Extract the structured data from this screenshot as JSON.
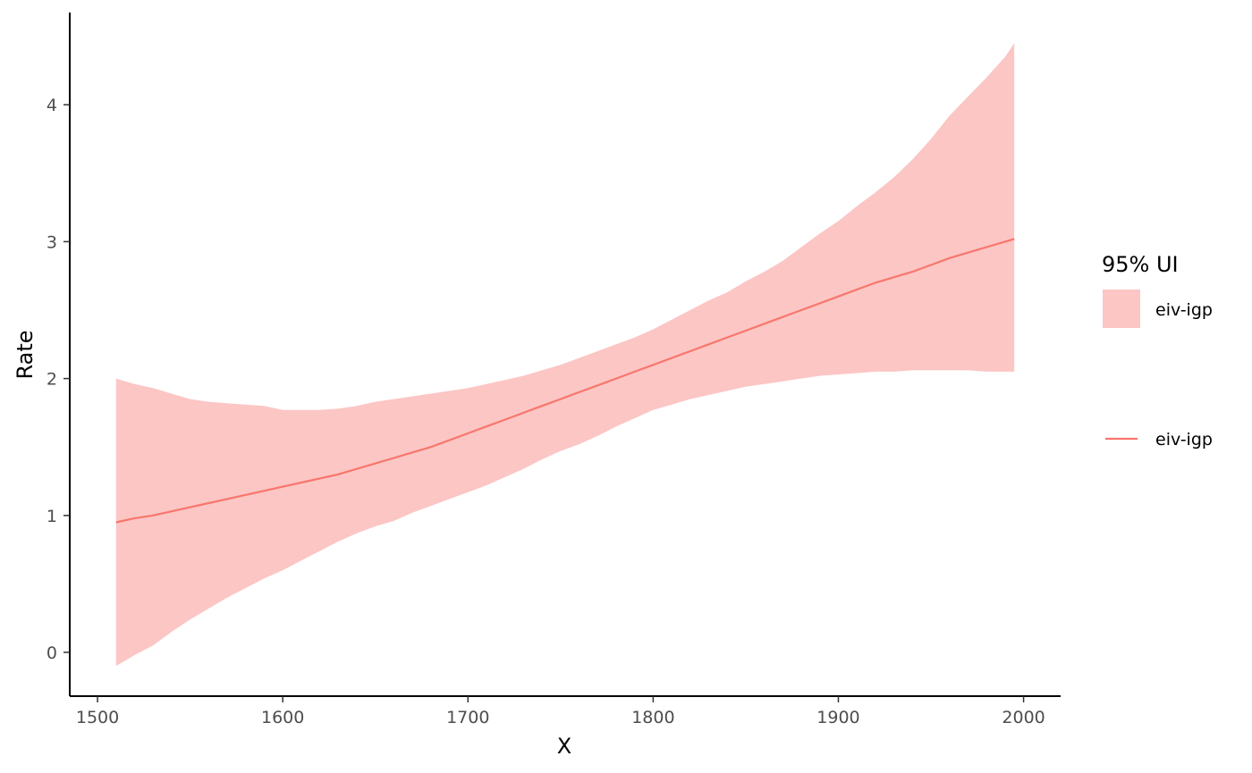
{
  "chart_data": {
    "type": "line",
    "title": "",
    "xlabel": "X",
    "ylabel": "Rate",
    "xlim": [
      1485,
      2020
    ],
    "ylim": [
      -0.32,
      4.7
    ],
    "x_ticks": [
      1500,
      1600,
      1700,
      1800,
      1900,
      2000
    ],
    "x_tick_labels": [
      "1500",
      "1600",
      "1700",
      "1800",
      "1900",
      "2000"
    ],
    "y_ticks": [
      0,
      1,
      2,
      3,
      4
    ],
    "y_tick_labels": [
      "0",
      "1",
      "2",
      "3",
      "4"
    ],
    "grid": false,
    "legend_position": "right",
    "x": [
      1510,
      1520,
      1530,
      1540,
      1550,
      1560,
      1570,
      1580,
      1590,
      1600,
      1610,
      1620,
      1630,
      1640,
      1650,
      1660,
      1670,
      1680,
      1690,
      1700,
      1710,
      1720,
      1730,
      1740,
      1750,
      1760,
      1770,
      1780,
      1790,
      1800,
      1810,
      1820,
      1830,
      1840,
      1850,
      1860,
      1870,
      1880,
      1890,
      1900,
      1910,
      1920,
      1930,
      1940,
      1950,
      1960,
      1970,
      1980,
      1990,
      1995
    ],
    "series": [
      {
        "name": "eiv-igp",
        "kind": "ribbon",
        "color": "#F8766D",
        "fill": "#FBC6C4",
        "lower": [
          -0.1,
          -0.02,
          0.05,
          0.15,
          0.24,
          0.32,
          0.4,
          0.47,
          0.54,
          0.6,
          0.67,
          0.74,
          0.81,
          0.87,
          0.92,
          0.96,
          1.02,
          1.07,
          1.12,
          1.17,
          1.22,
          1.28,
          1.34,
          1.41,
          1.47,
          1.52,
          1.58,
          1.65,
          1.71,
          1.77,
          1.81,
          1.85,
          1.88,
          1.91,
          1.94,
          1.96,
          1.98,
          2.0,
          2.02,
          2.03,
          2.04,
          2.05,
          2.05,
          2.06,
          2.06,
          2.06,
          2.06,
          2.05,
          2.05,
          2.05
        ],
        "upper": [
          2.0,
          1.96,
          1.93,
          1.89,
          1.85,
          1.83,
          1.82,
          1.81,
          1.8,
          1.77,
          1.77,
          1.77,
          1.78,
          1.8,
          1.83,
          1.85,
          1.87,
          1.89,
          1.91,
          1.93,
          1.96,
          1.99,
          2.02,
          2.06,
          2.1,
          2.15,
          2.2,
          2.25,
          2.3,
          2.36,
          2.43,
          2.5,
          2.57,
          2.63,
          2.71,
          2.78,
          2.86,
          2.96,
          3.06,
          3.15,
          3.26,
          3.36,
          3.47,
          3.6,
          3.75,
          3.92,
          4.06,
          4.2,
          4.35,
          4.45
        ]
      },
      {
        "name": "eiv-igp",
        "kind": "line",
        "color": "#F8766D",
        "values": [
          0.95,
          0.98,
          1.0,
          1.03,
          1.06,
          1.09,
          1.12,
          1.15,
          1.18,
          1.21,
          1.24,
          1.27,
          1.3,
          1.34,
          1.38,
          1.42,
          1.46,
          1.5,
          1.55,
          1.6,
          1.65,
          1.7,
          1.75,
          1.8,
          1.85,
          1.9,
          1.95,
          2.0,
          2.05,
          2.1,
          2.15,
          2.2,
          2.25,
          2.3,
          2.35,
          2.4,
          2.45,
          2.5,
          2.55,
          2.6,
          2.65,
          2.7,
          2.74,
          2.78,
          2.83,
          2.88,
          2.92,
          2.96,
          3.0,
          3.02
        ]
      }
    ],
    "legend": {
      "title": "95% UI",
      "ribbon_label": "eiv-igp",
      "line_label": "eiv-igp"
    }
  }
}
